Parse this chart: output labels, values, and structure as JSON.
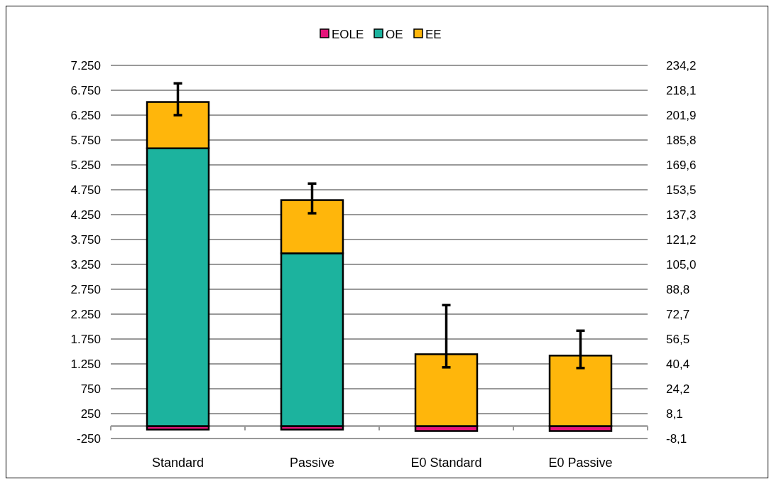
{
  "chart_data": {
    "type": "bar",
    "stacked": true,
    "categories": [
      "Standard",
      "Passive",
      "E0 Standard",
      "E0 Passive"
    ],
    "series": [
      {
        "name": "EOLE",
        "color": "#e5147a",
        "values": [
          -70,
          -70,
          -100,
          -100
        ]
      },
      {
        "name": "OE",
        "color": "#1cb39e",
        "values": [
          5583,
          3472,
          0,
          0
        ]
      },
      {
        "name": "EE",
        "color": "#ffb60b",
        "values": [
          931,
          1070,
          1444,
          1417
        ],
        "errors": [
          [
            6250,
            6889
          ],
          [
            4278,
            4875
          ],
          [
            1181,
            2431
          ],
          [
            1167,
            1917
          ]
        ]
      }
    ],
    "ylim": [
      -250,
      7250
    ],
    "yticks": [
      {
        "value": -250,
        "label": "-250"
      },
      250,
      750,
      {
        "value": 1250,
        "label": "1.250"
      },
      {
        "value": 1750,
        "label": "1.750"
      },
      {
        "value": 2250,
        "label": "2.250"
      },
      {
        "value": 2750,
        "label": "2.750"
      },
      {
        "value": 3250,
        "label": "3.250"
      },
      {
        "value": 3750,
        "label": "3.750"
      },
      {
        "value": 4250,
        "label": "4.250"
      },
      {
        "value": 4750,
        "label": "4.750"
      },
      {
        "value": 5250,
        "label": "5.250"
      },
      {
        "value": 5750,
        "label": "5.750"
      },
      {
        "value": 6250,
        "label": "6.250"
      },
      {
        "value": 6750,
        "label": "6.750"
      },
      {
        "value": 7250,
        "label": "7.250"
      }
    ],
    "y2lim": [
      -8.1,
      234.2
    ],
    "y2ticks": [
      {
        "value": -8.1,
        "label": "-8,1"
      },
      {
        "value": 8.1,
        "label": "8,1"
      },
      {
        "value": 24.2,
        "label": "24,2"
      },
      {
        "value": 40.4,
        "label": "40,4"
      },
      {
        "value": 56.5,
        "label": "56,5"
      },
      {
        "value": 72.7,
        "label": "72,7"
      },
      {
        "value": 88.8,
        "label": "88,8"
      },
      {
        "value": 105.0,
        "label": "105,0"
      },
      {
        "value": 121.2,
        "label": "121,2"
      },
      {
        "value": 137.3,
        "label": "137,3"
      },
      {
        "value": 153.5,
        "label": "153,5"
      },
      {
        "value": 169.6,
        "label": "169,6"
      },
      {
        "value": 185.8,
        "label": "185,8"
      },
      {
        "value": 201.9,
        "label": "201,9"
      },
      {
        "value": 218.1,
        "label": "218,1"
      },
      {
        "value": 234.2,
        "label": "234,2"
      }
    ],
    "grid": "y",
    "legend": "top"
  }
}
